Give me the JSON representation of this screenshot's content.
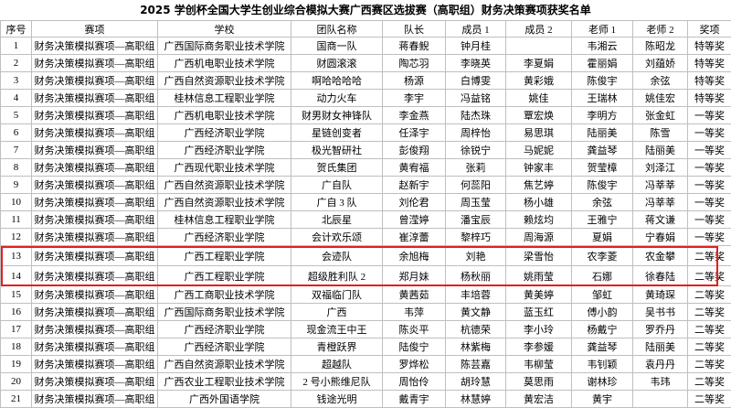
{
  "header": {
    "title": "2025 学创杯全国大学生创业综合模拟大赛广西赛区选拔赛（高职组）财务决策赛项获奖名单"
  },
  "table": {
    "columns": [
      "序号",
      "赛项",
      "学校",
      "团队名称",
      "队长",
      "成员 1",
      "成员 2",
      "老师 1",
      "老师 2",
      "奖项"
    ],
    "rows": [
      [
        "1",
        "财务决策模拟赛项—高职组",
        "广西国际商务职业技术学院",
        "国商一队",
        "蒋春鲵",
        "钟月桂",
        null,
        "韦湘云",
        "陈昭龙",
        "特等奖"
      ],
      [
        "2",
        "财务决策模拟赛项—高职组",
        "广西机电职业技术学院",
        "财圆滚滚",
        "陶芯羽",
        "李晓英",
        "李夏娟",
        "霍丽娟",
        "刘蕴娇",
        "特等奖"
      ],
      [
        "3",
        "财务决策模拟赛项—高职组",
        "广西自然资源职业技术学院",
        "啊哈哈哈哈",
        "杨源",
        "白博雯",
        "黄彩娥",
        "陈俊宇",
        "余弦",
        "特等奖"
      ],
      [
        "4",
        "财务决策模拟赛项—高职组",
        "桂林信息工程职业学院",
        "动力火车",
        "李宇",
        "冯益铭",
        "姚佳",
        "王瑞林",
        "姚佳宏",
        "特等奖"
      ],
      [
        "5",
        "财务决策模拟赛项—高职组",
        "广西机电职业技术学院",
        "财男财女神锋队",
        "李金燕",
        "陆杰珠",
        "覃宏焕",
        "李明方",
        "张金虹",
        "一等奖"
      ],
      [
        "6",
        "财务决策模拟赛项—高职组",
        "广西经济职业学院",
        "星链创变者",
        "任泽宇",
        "周梓怡",
        "易思琪",
        "陆丽美",
        "陈雪",
        "一等奖"
      ],
      [
        "7",
        "财务决策模拟赛项—高职组",
        "广西经济职业学院",
        "极光智研社",
        "彭俊翔",
        "徐锐宁",
        "马妮妮",
        "龚益琴",
        "陆丽美",
        "一等奖"
      ],
      [
        "8",
        "财务决策模拟赛项—高职组",
        "广西现代职业技术学院",
        "贺氏集团",
        "黄宥福",
        "张莉",
        "钟家丰",
        "贺莹樟",
        "刘泽江",
        "一等奖"
      ],
      [
        "9",
        "财务决策模拟赛项—高职组",
        "广西自然资源职业技术学院",
        "广自队",
        "赵新宇",
        "何蕊阳",
        "焦艺婷",
        "陈俊宇",
        "冯莘莘",
        "一等奖"
      ],
      [
        "10",
        "财务决策模拟赛项—高职组",
        "广西自然资源职业技术学院",
        "广自 3 队",
        "刘伦君",
        "周玉莹",
        "杨小雄",
        "余弦",
        "冯莘莘",
        "一等奖"
      ],
      [
        "11",
        "财务决策模拟赛项—高职组",
        "桂林信息工程职业学院",
        "北辰星",
        "曾滢婷",
        "潘宝辰",
        "赖炫均",
        "王雅宁",
        "蒋文谦",
        "一等奖"
      ],
      [
        "12",
        "财务决策模拟赛项—高职组",
        "广西经济职业学院",
        "会计欢乐颂",
        "崔淳蕾",
        "黎梓巧",
        "周海源",
        "夏娟",
        "宁春娟",
        "一等奖"
      ],
      [
        "13",
        "财务决策模拟赛项—高职组",
        "广西工程职业学院",
        "会迹队",
        "余旭梅",
        "刘艳",
        "梁雪怡",
        "农李菱",
        "农金攀",
        "二等奖"
      ],
      [
        "14",
        "财务决策模拟赛项—高职组",
        "广西工程职业学院",
        "超级胜利队 2",
        "郑月妹",
        "杨秋丽",
        "姚雨莹",
        "石娜",
        "徐春陆",
        "二等奖"
      ],
      [
        "15",
        "财务决策模拟赛项—高职组",
        "广西工商职业技术学院",
        "双福临门队",
        "黄茜茹",
        "丰培蓉",
        "黄美婷",
        "邹虹",
        "黄琦琛",
        "二等奖"
      ],
      [
        "16",
        "财务决策模拟赛项—高职组",
        "广西国际商务职业技术学院",
        "广西",
        "韦萍",
        "黄文静",
        "蓝玉红",
        "傅小韵",
        "吴书书",
        "二等奖"
      ],
      [
        "17",
        "财务决策模拟赛项—高职组",
        "广西经济职业学院",
        "现金流王中王",
        "陈炎平",
        "杭德荣",
        "李小玲",
        "杨戴宁",
        "罗乔丹",
        "二等奖"
      ],
      [
        "18",
        "财务决策模拟赛项—高职组",
        "广西经济职业学院",
        "青橙跃界",
        "陆俊宁",
        "林紫梅",
        "李参媛",
        "龚益琴",
        "陆丽美",
        "二等奖"
      ],
      [
        "19",
        "财务决策模拟赛项—高职组",
        "广西自然资源职业技术学院",
        "超越队",
        "罗烨松",
        "陈芸嘉",
        "韦柳莹",
        "韦钊颖",
        "袁丹丹",
        "二等奖"
      ],
      [
        "20",
        "财务决策模拟赛项—高职组",
        "广西农业工程职业技术学院",
        "2 号小熊维尼队",
        "周怡伶",
        "胡玲慧",
        "莫思雨",
        "谢林珍",
        "韦玮",
        "二等奖"
      ],
      [
        "21",
        "财务决策模拟赛项—高职组",
        "广西外国语学院",
        "钱途光明",
        "戴青宇",
        "林慧婷",
        "黄宏洁",
        "黄宇",
        null,
        "二等奖"
      ]
    ]
  }
}
